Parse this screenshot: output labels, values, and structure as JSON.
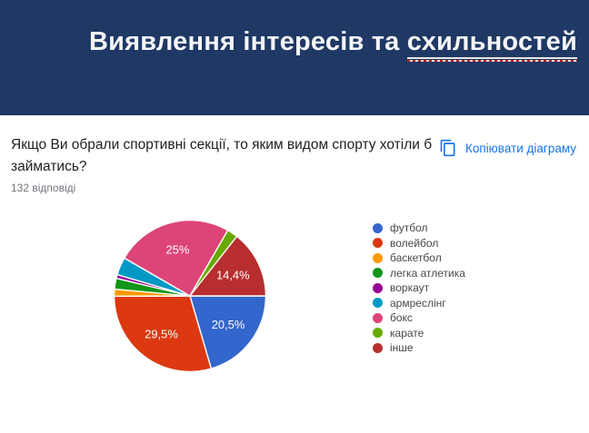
{
  "slide": {
    "title_prefix": "Виявлення інтересів та ",
    "title_underlined": "схильностей",
    "header_color": "#1f3864"
  },
  "survey": {
    "question": "Якщо Ви обрали спортивні секції, то яким видом спорту хотіли б займатись?",
    "responses_label": "132 відповіді",
    "copy_button_label": "Копіювати діаграму",
    "copy_button_icon": "copy-icon",
    "accent_color": "#1a73e8"
  },
  "chart_data": {
    "type": "pie",
    "title": "Якщо Ви обрали спортивні секції, то яким видом спорту хотіли б займатись?",
    "total_responses": 132,
    "legend_position": "right",
    "start_angle_deg": 90,
    "direction": "clockwise",
    "slices": [
      {
        "label": "футбол",
        "pct": 20.5,
        "display": "20,5%",
        "color": "#3366cc"
      },
      {
        "label": "волейбол",
        "pct": 29.5,
        "display": "29,5%",
        "color": "#dc3912"
      },
      {
        "label": "баскетбол",
        "pct": 1.5,
        "display": null,
        "color": "#ff9900"
      },
      {
        "label": "легка атлетика",
        "pct": 2.3,
        "display": null,
        "color": "#109618"
      },
      {
        "label": "воркаут",
        "pct": 0.8,
        "display": null,
        "color": "#990099"
      },
      {
        "label": "армреслінг",
        "pct": 3.8,
        "display": null,
        "color": "#0099c6"
      },
      {
        "label": "бокс",
        "pct": 25.0,
        "display": "25%",
        "color": "#dd4477"
      },
      {
        "label": "карате",
        "pct": 2.3,
        "display": null,
        "color": "#66aa00"
      },
      {
        "label": "інше",
        "pct": 14.4,
        "display": "14,4%",
        "color": "#b82e2e"
      }
    ]
  }
}
